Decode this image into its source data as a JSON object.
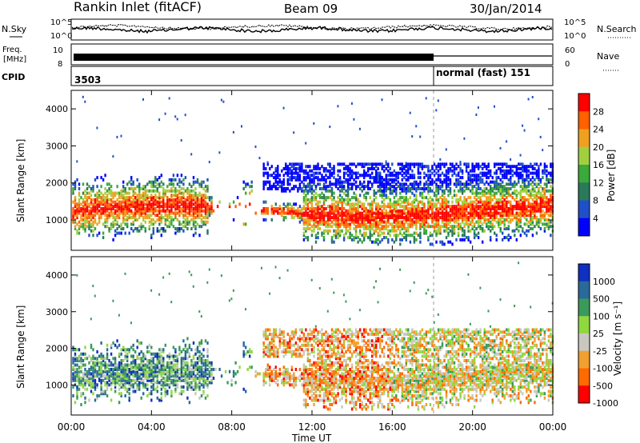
{
  "header": {
    "title": "Rankin Inlet (fitACF)",
    "beam": "Beam 09",
    "date": "30/Jan/2014"
  },
  "noise_panel": {
    "left_label": "N.Sky",
    "right_label": "N.Search",
    "tick_high": "10^5",
    "tick_low": "10^0",
    "right_tick_high": "10^5",
    "right_tick_low": "10^0"
  },
  "freq_panel": {
    "label_top": "Freq.",
    "label_unit": "[MHz]",
    "right_label": "Nave",
    "tick_freq_high": "10",
    "tick_freq_low": "8",
    "tick_nave_high": "60",
    "tick_nave_low": "0"
  },
  "cpid_panel": {
    "label": "CPID",
    "segments": [
      {
        "text": "3503"
      },
      {
        "text": "normal (fast) 151"
      }
    ]
  },
  "colors": {
    "power": [
      "#0000ff",
      "#2050c8",
      "#2a7a5a",
      "#3aaa3a",
      "#a0d040",
      "#f0a020",
      "#ff6000",
      "#ff0000"
    ],
    "velocity": [
      "#ff0000",
      "#ff6a00",
      "#f0a030",
      "#c8c8c0",
      "#90d840",
      "#3a9a5a",
      "#2a6a9a",
      "#1030c0"
    ]
  },
  "chart_data": [
    {
      "type": "heatmap",
      "name": "power",
      "ylabel": "Slant Range [km]",
      "yticks": [
        "1000",
        "2000",
        "3000",
        "4000"
      ],
      "ylim": [
        180,
        4500
      ],
      "xlim": [
        0,
        24
      ],
      "colorbar_label": "Power [dB]",
      "colorbar_ticks": [
        "4",
        "8",
        "12",
        "16",
        "20",
        "24",
        "28"
      ],
      "clim": [
        0,
        30
      ]
    },
    {
      "type": "heatmap",
      "name": "velocity",
      "ylabel": "Slant Range [km]",
      "yticks": [
        "1000",
        "2000",
        "3000",
        "4000"
      ],
      "ylim": [
        180,
        4500
      ],
      "xlim": [
        0,
        24
      ],
      "colorbar_label": "Velocity [m s⁻¹]",
      "colorbar_ticks": [
        "1000",
        "500",
        "100",
        "25",
        "-25",
        "-100",
        "-500",
        "-1000"
      ]
    }
  ],
  "xaxis": {
    "ticks": [
      "00:00",
      "04:00",
      "08:00",
      "12:00",
      "16:00",
      "20:00",
      "00:00"
    ],
    "label": "Time UT"
  }
}
